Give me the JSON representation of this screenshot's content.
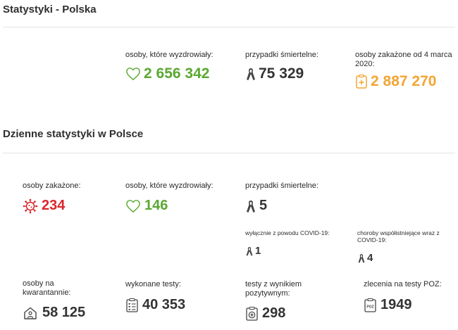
{
  "colors": {
    "green": "#5aa831",
    "red": "#d9262c",
    "orange": "#f2a533",
    "dark": "#333333"
  },
  "poland": {
    "title": "Statystyki - Polska",
    "recovered": {
      "label": "osoby, które wyzdrowiały:",
      "value": "2 656 342",
      "icon": "heart-icon"
    },
    "deaths": {
      "label": "przypadki śmiertelne:",
      "value": "75 329",
      "icon": "ribbon-icon"
    },
    "infected": {
      "label": "osoby zakażone od 4 marca 2020:",
      "value": "2 887 270",
      "icon": "clipboard-cross-icon"
    }
  },
  "daily": {
    "title": "Dzienne statystyki w Polsce",
    "infected": {
      "label": "osoby zakażone:",
      "value": "234",
      "icon": "virus-icon"
    },
    "recovered": {
      "label": "osoby, które wyzdrowiały:",
      "value": "146",
      "icon": "heart-icon"
    },
    "deaths": {
      "label": "przypadki śmiertelne:",
      "value": "5",
      "icon": "ribbon-icon"
    },
    "covid_only": {
      "label": "wyłącznie z powodu COVID-19:",
      "value": "1",
      "icon": "ribbon-icon"
    },
    "comorbid": {
      "label": "choroby współistniejące wraz z COVID-19:",
      "value": "4",
      "icon": "ribbon-icon"
    },
    "quarantine": {
      "label": "osoby na kwarantannie:",
      "value": "58 125",
      "icon": "home-person-icon"
    },
    "tests": {
      "label": "wykonane testy:",
      "value": "40 353",
      "icon": "clipboard-list-icon"
    },
    "positive_tests": {
      "label": "testy z wynikiem pozytywnym:",
      "value": "298",
      "icon": "positive-test-icon"
    },
    "poz_orders": {
      "label": "zlecenia na testy POZ:",
      "value": "1949",
      "icon": "poz-clipboard-icon",
      "icon_text": "POZ"
    }
  }
}
